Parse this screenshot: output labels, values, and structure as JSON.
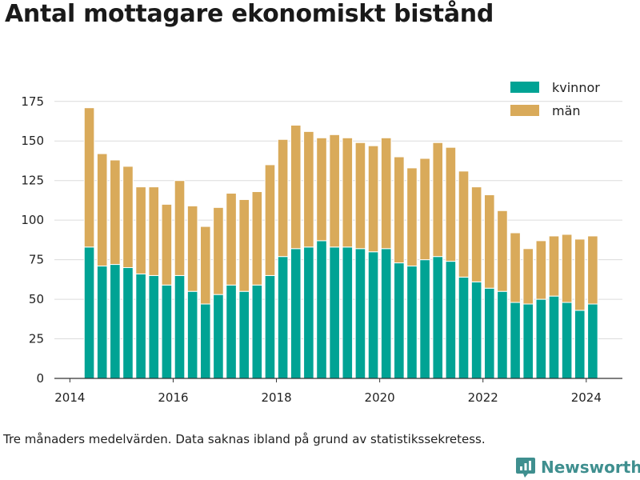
{
  "header": {
    "title": "Antal mottagare ekonomiskt bistånd"
  },
  "footer": {
    "note": "Tre månaders medelvärden. Data saknas ibland på grund av statistikssekretess.",
    "brand": "Newsworthy"
  },
  "chart_data": {
    "type": "bar",
    "stacked": true,
    "x": [
      2014.375,
      2014.625,
      2014.875,
      2015.125,
      2015.375,
      2015.625,
      2015.875,
      2016.125,
      2016.375,
      2016.625,
      2016.875,
      2017.125,
      2017.375,
      2017.625,
      2017.875,
      2018.125,
      2018.375,
      2018.625,
      2018.875,
      2019.125,
      2019.375,
      2019.625,
      2019.875,
      2020.125,
      2020.375,
      2020.625,
      2020.875,
      2021.125,
      2021.375,
      2021.625,
      2021.875,
      2022.125,
      2022.375,
      2022.625,
      2022.875,
      2023.125,
      2023.375,
      2023.625,
      2023.875,
      2024.125
    ],
    "series": [
      {
        "name": "kvinnor",
        "color": "#00a394",
        "values": [
          83,
          71,
          72,
          70,
          66,
          65,
          59,
          65,
          55,
          47,
          53,
          59,
          55,
          59,
          65,
          77,
          82,
          83,
          87,
          83,
          83,
          82,
          80,
          82,
          73,
          71,
          75,
          77,
          74,
          64,
          61,
          57,
          55,
          48,
          47,
          50,
          52,
          48,
          43,
          47
        ]
      },
      {
        "name": "män",
        "color": "#d9aa5a",
        "values": [
          88,
          71,
          66,
          64,
          55,
          56,
          51,
          60,
          54,
          49,
          55,
          58,
          58,
          59,
          70,
          74,
          78,
          73,
          65,
          71,
          69,
          67,
          67,
          70,
          67,
          62,
          64,
          72,
          72,
          67,
          60,
          59,
          51,
          44,
          35,
          37,
          38,
          43,
          45,
          43
        ]
      }
    ],
    "xlim": [
      2013.7,
      2024.7
    ],
    "ylim": [
      0,
      185
    ],
    "yticks": [
      0,
      25,
      50,
      75,
      100,
      125,
      150,
      175
    ],
    "xticks": [
      2014,
      2016,
      2018,
      2020,
      2022,
      2024
    ],
    "grid": true,
    "legend": "top-right"
  }
}
